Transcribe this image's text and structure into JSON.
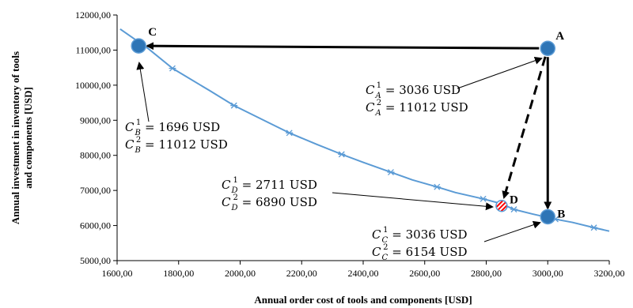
{
  "chart_data": {
    "type": "scatter",
    "xlabel": "Annual order cost of tools and components [USD]",
    "ylabel_lines": [
      "Annual investment in inventory of tools",
      "and components [USD]"
    ],
    "xlim": [
      1600,
      3200
    ],
    "ylim": [
      5000,
      12000
    ],
    "x_ticks": [
      1600,
      1800,
      2000,
      2200,
      2400,
      2600,
      2800,
      3000,
      3200
    ],
    "y_ticks": [
      5000,
      6000,
      7000,
      8000,
      9000,
      10000,
      11000,
      12000
    ],
    "x_tick_labels": [
      "1600,00",
      "1800,00",
      "2000,00",
      "2200,00",
      "2400,00",
      "2600,00",
      "2800,00",
      "3000,00",
      "3200,00"
    ],
    "y_tick_labels": [
      "5000,00",
      "6000,00",
      "7000,00",
      "8000,00",
      "9000,00",
      "10000,00",
      "11000,00",
      "12000,00"
    ],
    "curve": {
      "color": "#5b9bd5",
      "x": [
        1610,
        1700,
        1780,
        1900,
        1980,
        2100,
        2160,
        2250,
        2330,
        2400,
        2490,
        2560,
        2640,
        2700,
        2790,
        2850,
        2890,
        2950,
        3025,
        3080,
        3150,
        3200
      ],
      "y": [
        11600,
        11050,
        10480,
        9850,
        9420,
        8900,
        8640,
        8310,
        8030,
        7800,
        7520,
        7300,
        7100,
        6940,
        6760,
        6620,
        6460,
        6330,
        6180,
        6090,
        5940,
        5840
      ]
    },
    "curve_markers_x": [
      1780,
      1980,
      2160,
      2330,
      2490,
      2640,
      2790,
      2890,
      3025,
      3150
    ],
    "curve_markers_y": [
      10480,
      9420,
      8640,
      8030,
      7520,
      7100,
      6760,
      6460,
      6180,
      5940
    ],
    "points": [
      {
        "name": "A",
        "x": 3000,
        "y": 11050,
        "style": "filled",
        "color": "#2e75b6"
      },
      {
        "name": "B",
        "x": 3000,
        "y": 6250,
        "style": "filled",
        "color": "#2e75b6"
      },
      {
        "name": "C",
        "x": 1670,
        "y": 11120,
        "style": "filled",
        "color": "#2e75b6"
      },
      {
        "name": "D",
        "x": 2850,
        "y": 6560,
        "style": "hatched",
        "color": "#ff0000"
      }
    ],
    "arrows": [
      {
        "from": "A",
        "to": "C",
        "style": "solid"
      },
      {
        "from": "A",
        "to": "B",
        "style": "solid"
      },
      {
        "from": "A",
        "to": "D",
        "style": "dashed"
      }
    ],
    "annotations": [
      {
        "target": "A",
        "lines": [
          {
            "sub": "A",
            "sup": "1",
            "value": " = 3036 USD"
          },
          {
            "sub": "A",
            "sup": "2",
            "value": " = 11012 USD"
          }
        ]
      },
      {
        "target": "B",
        "lines": [
          {
            "sub": "B",
            "sup": "1",
            "value": " = 1696 USD"
          },
          {
            "sub": "B",
            "sup": "2",
            "value": " = 11012 USD"
          }
        ]
      },
      {
        "target": "D",
        "lines": [
          {
            "sub": "D",
            "sup": "1",
            "value": " = 2711 USD"
          },
          {
            "sub": "D",
            "sup": "2",
            "value": " = 6890 USD"
          }
        ]
      },
      {
        "target": "C",
        "lines": [
          {
            "sub": "C",
            "sup": "1",
            "value": " = 3036 USD"
          },
          {
            "sub": "C",
            "sup": "2",
            "value": " = 6154 USD"
          }
        ]
      }
    ],
    "symbol": "C",
    "grid": false,
    "legend": "none"
  }
}
